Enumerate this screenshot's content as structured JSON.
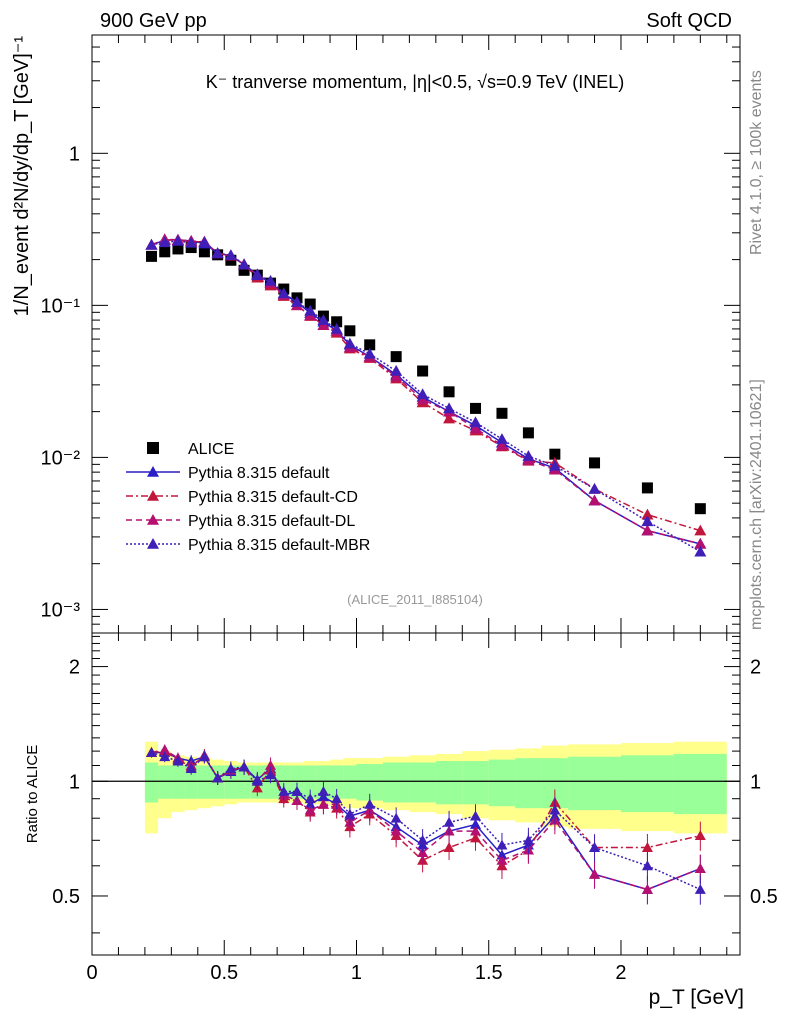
{
  "header": {
    "left": "900 GeV pp",
    "right": "Soft QCD"
  },
  "side_labels": {
    "rivet": "Rivet 4.1.0, ≥ 100k events",
    "source": "mcplots.cern.ch [arXiv:2401.10621]"
  },
  "chart_data": [
    {
      "type": "scatter",
      "panel": "main",
      "title": "K⁻ tranverse momentum, |η|<0.5, √s=0.9 TeV (INEL)",
      "ylabel": "1/N_event d²N/dy/dp_T [GeV]⁻¹",
      "yscale": "log",
      "xlim": [
        0,
        2.45
      ],
      "ylim": [
        0.0007,
        6
      ],
      "ytick_labels": [
        "10⁻³",
        "10⁻²",
        "10⁻¹",
        "1"
      ],
      "watermark": "(ALICE_2011_I885104)",
      "x": [
        0.225,
        0.275,
        0.325,
        0.375,
        0.425,
        0.475,
        0.525,
        0.575,
        0.625,
        0.675,
        0.725,
        0.775,
        0.825,
        0.875,
        0.925,
        0.975,
        1.05,
        1.15,
        1.25,
        1.35,
        1.45,
        1.55,
        1.65,
        1.75,
        1.9,
        2.1,
        2.3
      ],
      "series": [
        {
          "name": "ALICE",
          "marker": "square",
          "color": "#000000",
          "values": [
            0.21,
            0.225,
            0.235,
            0.24,
            0.225,
            0.215,
            0.198,
            0.17,
            0.158,
            0.14,
            0.128,
            0.112,
            0.102,
            0.085,
            0.078,
            0.068,
            0.055,
            0.046,
            0.037,
            0.027,
            0.021,
            0.0195,
            0.0145,
            0.0105,
            0.0092,
            0.0063,
            0.0046
          ]
        },
        {
          "name": "Pythia 8.315 default",
          "line": "solid",
          "marker": "triangle",
          "color": "#2a1fc6",
          "values": [
            0.25,
            0.268,
            0.27,
            0.265,
            0.255,
            0.22,
            0.212,
            0.185,
            0.16,
            0.14,
            0.118,
            0.105,
            0.089,
            0.078,
            0.068,
            0.055,
            0.046,
            0.035,
            0.025,
            0.02,
            0.0162,
            0.0125,
            0.0098,
            0.0085,
            0.0052,
            0.0033,
            0.0027
          ]
        },
        {
          "name": "Pythia 8.315 default-CD",
          "line": "dashdot",
          "marker": "triangle",
          "color": "#c2163c",
          "values": [
            0.25,
            0.27,
            0.268,
            0.262,
            0.262,
            0.22,
            0.212,
            0.186,
            0.152,
            0.135,
            0.115,
            0.1,
            0.085,
            0.074,
            0.066,
            0.052,
            0.045,
            0.033,
            0.023,
            0.018,
            0.015,
            0.0118,
            0.0095,
            0.0092,
            0.0062,
            0.0042,
            0.0033
          ]
        },
        {
          "name": "Pythia 8.315 default-DL",
          "line": "dashed",
          "marker": "triangle",
          "color": "#b51070",
          "values": [
            0.25,
            0.272,
            0.27,
            0.265,
            0.262,
            0.22,
            0.212,
            0.186,
            0.158,
            0.14,
            0.117,
            0.1,
            0.086,
            0.074,
            0.068,
            0.053,
            0.046,
            0.034,
            0.024,
            0.02,
            0.0155,
            0.012,
            0.0096,
            0.0083,
            0.0052,
            0.0033,
            0.0027
          ]
        },
        {
          "name": "Pythia 8.315 default-MBR",
          "line": "dotted",
          "marker": "triangle",
          "color": "#3f1fb8",
          "values": [
            0.25,
            0.26,
            0.265,
            0.258,
            0.26,
            0.22,
            0.214,
            0.186,
            0.158,
            0.145,
            0.12,
            0.105,
            0.092,
            0.08,
            0.07,
            0.056,
            0.048,
            0.037,
            0.026,
            0.021,
            0.017,
            0.0132,
            0.0102,
            0.0088,
            0.0062,
            0.0038,
            0.0024
          ]
        }
      ]
    },
    {
      "type": "line",
      "panel": "ratio",
      "ylabel": "Ratio to ALICE",
      "xlabel": "p_T [GeV]",
      "xlim": [
        0,
        2.45
      ],
      "ylim": [
        0.35,
        2.45
      ],
      "x_ticks": [
        0,
        0.5,
        1,
        1.5,
        2
      ],
      "x_tick_labels": [
        "0",
        "0.5",
        "1",
        "1.5",
        "2"
      ],
      "y_ticks": [
        0.5,
        1,
        2
      ],
      "y_tick_labels": [
        "0.5",
        "1",
        "2"
      ],
      "band_edges": [
        0.2,
        0.25,
        0.3,
        0.35,
        0.4,
        0.45,
        0.5,
        0.55,
        0.6,
        0.65,
        0.7,
        0.75,
        0.8,
        0.85,
        0.9,
        0.95,
        1.0,
        1.1,
        1.2,
        1.3,
        1.4,
        1.5,
        1.6,
        1.7,
        1.8,
        2.0,
        2.2,
        2.4
      ],
      "band_green": [
        0.12,
        0.1,
        0.1,
        0.1,
        0.1,
        0.1,
        0.1,
        0.1,
        0.1,
        0.1,
        0.1,
        0.1,
        0.1,
        0.1,
        0.1,
        0.1,
        0.11,
        0.12,
        0.12,
        0.13,
        0.13,
        0.14,
        0.15,
        0.15,
        0.16,
        0.17,
        0.18
      ],
      "band_yellow": [
        0.27,
        0.2,
        0.17,
        0.16,
        0.15,
        0.14,
        0.13,
        0.12,
        0.12,
        0.12,
        0.12,
        0.12,
        0.13,
        0.13,
        0.14,
        0.15,
        0.15,
        0.16,
        0.17,
        0.18,
        0.2,
        0.21,
        0.22,
        0.24,
        0.25,
        0.26,
        0.27
      ],
      "series": [
        {
          "name": "Pythia 8.315 default",
          "values": [
            1.19,
            1.19,
            1.15,
            1.13,
            1.16,
            1.02,
            1.06,
            1.09,
            1.01,
            1.08,
            0.92,
            0.94,
            0.87,
            0.91,
            0.87,
            0.81,
            0.84,
            0.76,
            0.68,
            0.74,
            0.77,
            0.64,
            0.68,
            0.81,
            0.57,
            0.52,
            0.59
          ]
        },
        {
          "name": "Pythia 8.315 default-CD",
          "values": [
            1.19,
            1.2,
            1.14,
            1.09,
            1.17,
            1.02,
            1.07,
            1.09,
            0.96,
            1.07,
            0.9,
            0.89,
            0.83,
            0.87,
            0.85,
            0.76,
            0.82,
            0.72,
            0.62,
            0.67,
            0.71,
            0.6,
            0.66,
            0.88,
            0.67,
            0.67,
            0.72
          ]
        },
        {
          "name": "Pythia 8.315 default-DL",
          "values": [
            1.19,
            1.21,
            1.15,
            1.1,
            1.16,
            1.02,
            1.07,
            1.09,
            1.0,
            1.1,
            0.92,
            0.89,
            0.84,
            0.87,
            0.87,
            0.78,
            0.84,
            0.74,
            0.65,
            0.74,
            0.74,
            0.62,
            0.66,
            0.79,
            0.57,
            0.52,
            0.59
          ]
        },
        {
          "name": "Pythia 8.315 default-MBR",
          "values": [
            1.19,
            1.16,
            1.13,
            1.08,
            1.16,
            1.02,
            1.08,
            1.09,
            1.0,
            1.04,
            0.94,
            0.94,
            0.9,
            0.94,
            0.9,
            0.82,
            0.87,
            0.8,
            0.7,
            0.78,
            0.81,
            0.68,
            0.7,
            0.84,
            0.67,
            0.6,
            0.52
          ]
        }
      ]
    }
  ]
}
